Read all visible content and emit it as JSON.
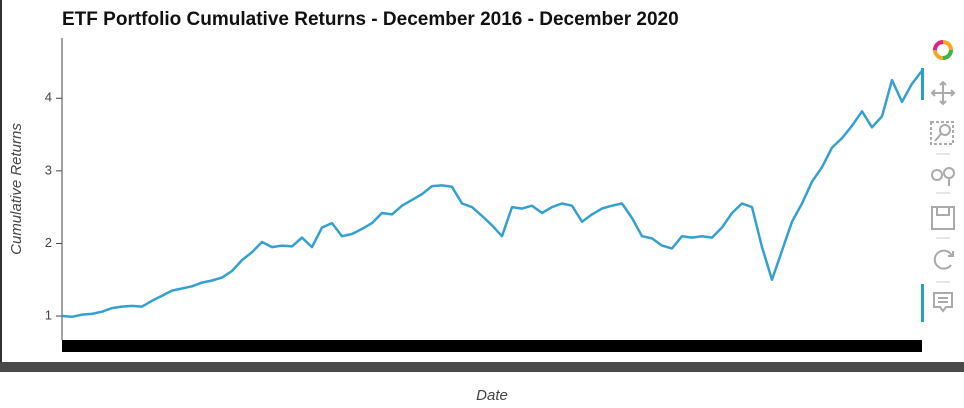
{
  "chart_data": {
    "type": "line",
    "title": "ETF Portfolio Cumulative Returns - December 2016 - December 2020",
    "x_label": "Date",
    "y_label": "Cumulative Returns",
    "color": "#35a0d0",
    "ylim": [
      0.67,
      4.83
    ],
    "yticks": [
      1,
      2,
      3,
      4
    ],
    "values": [
      1.0,
      0.99,
      1.02,
      1.03,
      1.06,
      1.11,
      1.13,
      1.14,
      1.13,
      1.21,
      1.28,
      1.35,
      1.38,
      1.41,
      1.46,
      1.49,
      1.53,
      1.62,
      1.77,
      1.88,
      2.02,
      1.95,
      1.97,
      1.96,
      2.08,
      1.95,
      2.22,
      2.28,
      2.1,
      2.13,
      2.2,
      2.28,
      2.42,
      2.4,
      2.52,
      2.6,
      2.68,
      2.79,
      2.8,
      2.78,
      2.55,
      2.5,
      2.38,
      2.25,
      2.1,
      2.5,
      2.48,
      2.52,
      2.42,
      2.5,
      2.55,
      2.52,
      2.3,
      2.4,
      2.48,
      2.52,
      2.55,
      2.35,
      2.1,
      2.07,
      1.97,
      1.93,
      2.1,
      2.08,
      2.1,
      2.08,
      2.22,
      2.42,
      2.55,
      2.5,
      1.95,
      1.5,
      1.9,
      2.3,
      2.55,
      2.85,
      3.05,
      3.32,
      3.45,
      3.62,
      3.82,
      3.6,
      3.75,
      4.25,
      3.95,
      4.2,
      4.38
    ]
  }
}
